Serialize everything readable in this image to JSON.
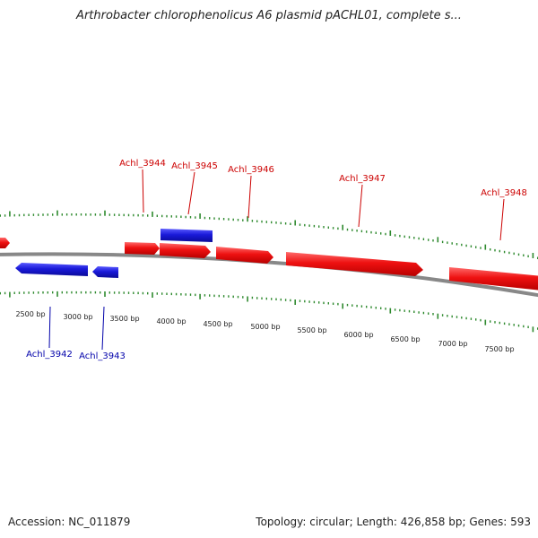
{
  "title": "Arthrobacter chlorophenolicus A6 plasmid pACHL01, complete s...",
  "footer": {
    "accession": "Accession: NC_011879",
    "summary": "Topology: circular; Length: 426,858 bp; Genes: 593"
  },
  "colors": {
    "forward_gene": "#ee1111",
    "reverse_gene": "#1a1ad9",
    "forward_label": "#cc0000",
    "reverse_label": "#0000aa",
    "tick": "#2f8a2f",
    "backbone": "#888888"
  },
  "scale_labels": [
    "2500 bp",
    "3000 bp",
    "3500 bp",
    "4000 bp",
    "4500 bp",
    "5000 bp",
    "5500 bp",
    "6000 bp",
    "6500 bp",
    "7000 bp",
    "7500 bp"
  ],
  "genes": [
    {
      "label": "",
      "strand": "forward"
    },
    {
      "label": "",
      "strand": "reverse"
    },
    {
      "label": "Achl_3942",
      "strand": "reverse"
    },
    {
      "label": "Achl_3943",
      "strand": "reverse"
    },
    {
      "label": "Achl_3944",
      "strand": "forward"
    },
    {
      "label": "Achl_3945",
      "strand": "forward"
    },
    {
      "label": "Achl_3946",
      "strand": "forward"
    },
    {
      "label": "Achl_3947",
      "strand": "forward"
    },
    {
      "label": "Achl_3948",
      "strand": "forward"
    }
  ]
}
